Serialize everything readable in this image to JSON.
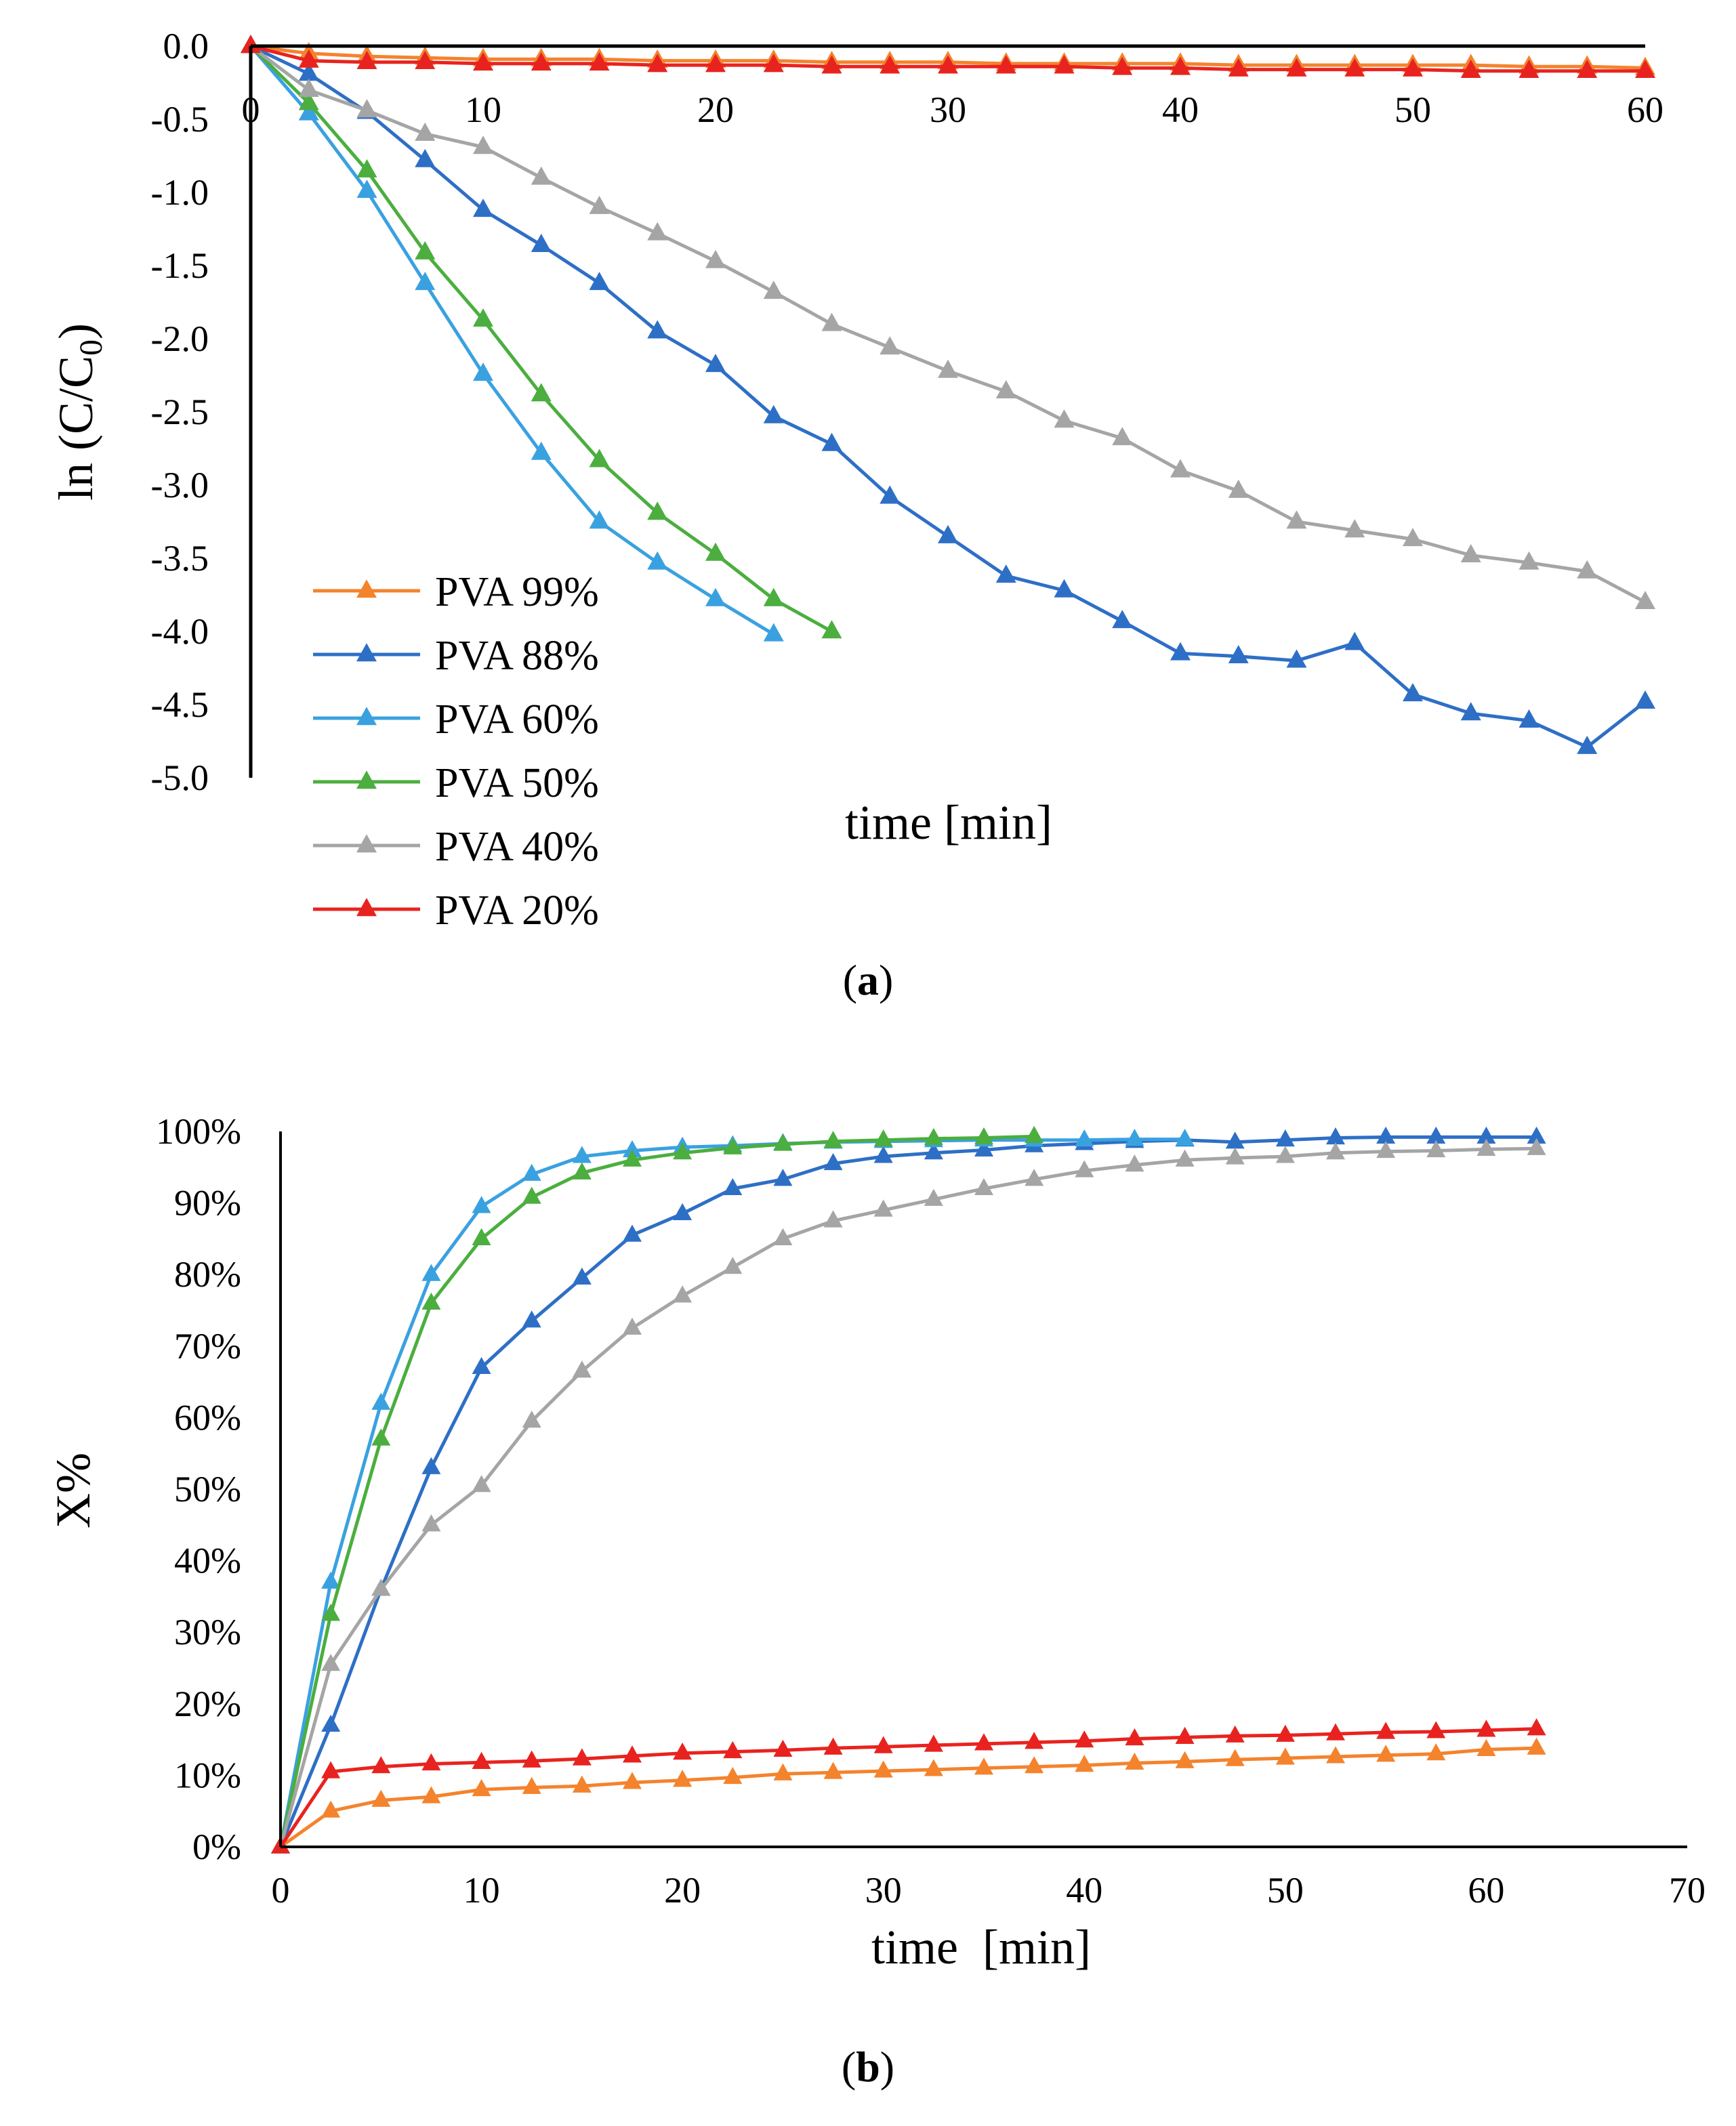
{
  "chart_data": [
    {
      "id": "a",
      "type": "line",
      "caption_letter": "a",
      "xlabel": "time [min]",
      "ylabel": "ln (C/C0)",
      "ylabel_main": "ln (C/C",
      "ylabel_sub": "0",
      "ylabel_close": ")",
      "xlim": [
        0,
        60
      ],
      "ylim": [
        -5.0,
        0.0
      ],
      "xticks": [
        "0",
        "10",
        "20",
        "30",
        "40",
        "50",
        "60"
      ],
      "yticks": [
        "0.0",
        "-0.5",
        "-1.0",
        "-1.5",
        "-2.0",
        "-2.5",
        "-3.0",
        "-3.5",
        "-4.0",
        "-4.5",
        "-5.0"
      ],
      "legend_position": "bottom-left",
      "grid": false,
      "series": [
        {
          "name": "PVA 99%",
          "color": "#F4832D",
          "x": [
            0,
            2.5,
            5,
            7.5,
            10,
            12.5,
            15,
            17.5,
            20,
            22.5,
            25,
            27.5,
            30,
            32.5,
            35,
            37.5,
            40,
            42.5,
            45,
            47.5,
            50,
            52.5,
            55,
            57.5,
            60
          ],
          "y": [
            0,
            -0.05,
            -0.07,
            -0.08,
            -0.09,
            -0.09,
            -0.09,
            -0.1,
            -0.1,
            -0.1,
            -0.11,
            -0.11,
            -0.11,
            -0.12,
            -0.12,
            -0.12,
            -0.12,
            -0.13,
            -0.13,
            -0.13,
            -0.13,
            -0.13,
            -0.14,
            -0.14,
            -0.15
          ]
        },
        {
          "name": "PVA 88%",
          "color": "#2E6FC6",
          "x": [
            0,
            2.5,
            5,
            7.5,
            10,
            12.5,
            15,
            17.5,
            20,
            22.5,
            25,
            27.5,
            30,
            32.5,
            35,
            37.5,
            40,
            42.5,
            45,
            47.5,
            50,
            52.5,
            55,
            57.5,
            60
          ],
          "y": [
            0,
            -0.19,
            -0.45,
            -0.78,
            -1.12,
            -1.36,
            -1.62,
            -1.95,
            -2.18,
            -2.53,
            -2.72,
            -3.08,
            -3.35,
            -3.62,
            -3.72,
            -3.93,
            -4.15,
            -4.17,
            -4.2,
            -4.08,
            -4.43,
            -4.56,
            -4.61,
            -4.79,
            -4.48
          ]
        },
        {
          "name": "PVA 60%",
          "color": "#3AA1E0",
          "x": [
            0,
            2.5,
            5,
            7.5,
            10,
            12.5,
            15,
            17.5,
            20,
            22.5
          ],
          "y": [
            0,
            -0.46,
            -0.99,
            -1.62,
            -2.24,
            -2.78,
            -3.25,
            -3.53,
            -3.78,
            -4.02
          ]
        },
        {
          "name": "PVA 50%",
          "color": "#4BAE3F",
          "x": [
            0,
            2.5,
            5,
            7.5,
            10,
            12.5,
            15,
            17.5,
            20,
            22.5,
            25
          ],
          "y": [
            0,
            -0.39,
            -0.85,
            -1.41,
            -1.87,
            -2.38,
            -2.83,
            -3.19,
            -3.47,
            -3.78,
            -4.0
          ]
        },
        {
          "name": "PVA 40%",
          "color": "#A5A5A5",
          "x": [
            0,
            2.5,
            5,
            7.5,
            10,
            12.5,
            15,
            17.5,
            20,
            22.5,
            25,
            27.5,
            30,
            32.5,
            35,
            37.5,
            40,
            42.5,
            45,
            47.5,
            50,
            52.5,
            55,
            57.5,
            60
          ],
          "y": [
            0,
            -0.3,
            -0.44,
            -0.6,
            -0.69,
            -0.9,
            -1.1,
            -1.28,
            -1.47,
            -1.68,
            -1.9,
            -2.06,
            -2.22,
            -2.36,
            -2.56,
            -2.68,
            -2.9,
            -3.04,
            -3.25,
            -3.31,
            -3.37,
            -3.48,
            -3.53,
            -3.59,
            -3.8
          ]
        },
        {
          "name": "PVA 20%",
          "color": "#E8231F",
          "x": [
            0,
            2.5,
            5,
            7.5,
            10,
            12.5,
            15,
            17.5,
            20,
            22.5,
            25,
            27.5,
            30,
            32.5,
            35,
            37.5,
            40,
            42.5,
            45,
            47.5,
            50,
            52.5,
            55,
            57.5,
            60
          ],
          "y": [
            0,
            -0.1,
            -0.11,
            -0.11,
            -0.12,
            -0.12,
            -0.12,
            -0.13,
            -0.13,
            -0.13,
            -0.14,
            -0.14,
            -0.14,
            -0.14,
            -0.14,
            -0.15,
            -0.15,
            -0.16,
            -0.16,
            -0.16,
            -0.16,
            -0.17,
            -0.17,
            -0.17,
            -0.17
          ]
        }
      ]
    },
    {
      "id": "b",
      "type": "line",
      "caption_letter": "b",
      "xlabel": "time  [min]",
      "ylabel": "X%",
      "xlim": [
        0,
        70
      ],
      "ylim": [
        0,
        100
      ],
      "xticks": [
        "0",
        "10",
        "20",
        "30",
        "40",
        "50",
        "60",
        "70"
      ],
      "yticks": [
        "0%",
        "10%",
        "20%",
        "30%",
        "40%",
        "50%",
        "60%",
        "70%",
        "80%",
        "90%",
        "100%"
      ],
      "grid": false,
      "series": [
        {
          "name": "PVA 99%",
          "color": "#F4832D",
          "x": [
            0,
            2.5,
            5,
            7.5,
            10,
            12.5,
            15,
            17.5,
            20,
            22.5,
            25,
            27.5,
            30,
            32.5,
            35,
            37.5,
            40,
            42.5,
            45,
            47.5,
            50,
            52.5,
            55,
            57.5,
            60,
            62.5
          ],
          "y": [
            0,
            5,
            6.5,
            7,
            8,
            8.3,
            8.5,
            9,
            9.3,
            9.7,
            10.2,
            10.4,
            10.6,
            10.8,
            11,
            11.2,
            11.4,
            11.7,
            11.9,
            12.2,
            12.4,
            12.6,
            12.8,
            13,
            13.6,
            13.8
          ]
        },
        {
          "name": "PVA 88%",
          "color": "#2E6FC6",
          "x": [
            0,
            2.5,
            5,
            7.5,
            10,
            12.5,
            15,
            17.5,
            20,
            22.5,
            25,
            27.5,
            30,
            32.5,
            35,
            37.5,
            40,
            42.5,
            45,
            47.5,
            50,
            52.5,
            55,
            57.5,
            60,
            62.5
          ],
          "y": [
            0,
            17,
            36,
            53,
            67,
            73.5,
            79.5,
            85.5,
            88.5,
            92,
            93.3,
            95.5,
            96.5,
            97,
            97.4,
            98,
            98.3,
            98.6,
            98.8,
            98.5,
            98.8,
            99.1,
            99.2,
            99.2,
            99.2,
            99.2
          ]
        },
        {
          "name": "PVA 60%",
          "color": "#3AA1E0",
          "x": [
            0,
            2.5,
            5,
            7.5,
            10,
            12.5,
            15,
            17.5,
            20,
            22.5,
            25,
            27.5,
            30,
            32.5,
            35,
            37.5,
            40,
            42.5,
            45
          ],
          "y": [
            0,
            37,
            62,
            80,
            89.5,
            94,
            96.5,
            97.3,
            97.8,
            98,
            98.3,
            98.5,
            98.6,
            98.7,
            98.8,
            98.8,
            98.8,
            98.9,
            98.9
          ]
        },
        {
          "name": "PVA 50%",
          "color": "#4BAE3F",
          "x": [
            0,
            2.5,
            5,
            7.5,
            10,
            12.5,
            15,
            17.5,
            20,
            22.5,
            25,
            27.5,
            30,
            32.5,
            35,
            37.5
          ],
          "y": [
            0,
            32.5,
            57,
            76,
            85,
            90.8,
            94.2,
            96,
            97,
            97.7,
            98.2,
            98.6,
            98.8,
            99,
            99.1,
            99.3
          ]
        },
        {
          "name": "PVA 40%",
          "color": "#A5A5A5",
          "x": [
            0,
            2.5,
            5,
            7.5,
            10,
            12.5,
            15,
            17.5,
            20,
            22.5,
            25,
            27.5,
            30,
            32.5,
            35,
            37.5,
            40,
            42.5,
            45,
            47.5,
            50,
            52.5,
            55,
            57.5,
            60,
            62.5
          ],
          "y": [
            0,
            25.5,
            36,
            45,
            50.5,
            59.5,
            66.5,
            72.5,
            77,
            81,
            85,
            87.5,
            89,
            90.5,
            92,
            93.3,
            94.5,
            95.3,
            96,
            96.3,
            96.5,
            97,
            97.2,
            97.3,
            97.5,
            97.6
          ]
        },
        {
          "name": "PVA 20%",
          "color": "#E8231F",
          "x": [
            0,
            2.5,
            5,
            7.5,
            10,
            12.5,
            15,
            17.5,
            20,
            22.5,
            25,
            27.5,
            30,
            32.5,
            35,
            37.5,
            40,
            42.5,
            45,
            47.5,
            50,
            52.5,
            55,
            57.5,
            60,
            62.5
          ],
          "y": [
            0,
            10.5,
            11.2,
            11.6,
            11.8,
            12,
            12.3,
            12.7,
            13.1,
            13.3,
            13.5,
            13.8,
            14,
            14.2,
            14.4,
            14.6,
            14.8,
            15.1,
            15.3,
            15.5,
            15.6,
            15.8,
            16,
            16.1,
            16.3,
            16.5
          ]
        }
      ]
    }
  ]
}
